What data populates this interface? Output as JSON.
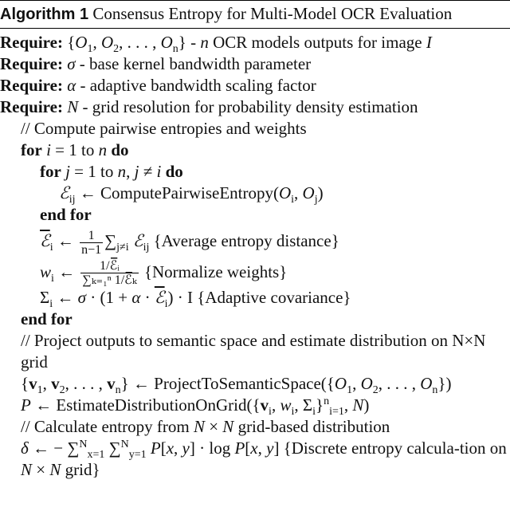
{
  "algorithm": {
    "label": "Algorithm 1",
    "title": "Consensus Entropy for Multi-Model OCR Evaluation",
    "lines": [
      {
        "indent": -1,
        "parts": [
          [
            "b",
            "Require:"
          ],
          [
            "r",
            "  {"
          ],
          [
            "i",
            "O"
          ],
          [
            "sub",
            "1"
          ],
          [
            "r",
            ", "
          ],
          [
            "i",
            "O"
          ],
          [
            "sub",
            "2"
          ],
          [
            "r",
            ", . . . , "
          ],
          [
            "i",
            "O"
          ],
          [
            "sub",
            "n"
          ],
          [
            "r",
            "} - "
          ],
          [
            "i",
            "n"
          ],
          [
            "r",
            " OCR models outputs for image "
          ],
          [
            "i",
            "I"
          ]
        ]
      },
      {
        "indent": -1,
        "parts": [
          [
            "b",
            "Require:"
          ],
          [
            "r",
            "  "
          ],
          [
            "i",
            "σ"
          ],
          [
            "r",
            " - base kernel bandwidth parameter"
          ]
        ]
      },
      {
        "indent": -1,
        "parts": [
          [
            "b",
            "Require:"
          ],
          [
            "r",
            "  "
          ],
          [
            "i",
            "α"
          ],
          [
            "r",
            " - adaptive bandwidth scaling factor"
          ]
        ]
      },
      {
        "indent": -1,
        "parts": [
          [
            "b",
            "Require:"
          ],
          [
            "r",
            "  "
          ],
          [
            "i",
            "N"
          ],
          [
            "r",
            " - grid resolution for probability density estimation"
          ]
        ]
      },
      {
        "indent": 0,
        "parts": [
          [
            "r",
            "// Compute pairwise entropies and weights"
          ]
        ]
      },
      {
        "indent": 0,
        "parts": [
          [
            "b",
            "for"
          ],
          [
            "r",
            " "
          ],
          [
            "i",
            "i"
          ],
          [
            "r",
            " = 1 to "
          ],
          [
            "i",
            "n"
          ],
          [
            "r",
            " "
          ],
          [
            "b",
            "do"
          ]
        ]
      },
      {
        "indent": 1,
        "parts": [
          [
            "b",
            "for"
          ],
          [
            "r",
            " "
          ],
          [
            "i",
            "j"
          ],
          [
            "r",
            " = 1 to "
          ],
          [
            "i",
            "n"
          ],
          [
            "r",
            ", "
          ],
          [
            "i",
            "j"
          ],
          [
            "r",
            " ≠ "
          ],
          [
            "i",
            "i"
          ],
          [
            "r",
            " "
          ],
          [
            "b",
            "do"
          ]
        ]
      },
      {
        "indent": 2,
        "parts": [
          [
            "i",
            "ℰ"
          ],
          [
            "sub",
            "ij"
          ],
          [
            "r",
            " ← ComputePairwiseEntropy("
          ],
          [
            "i",
            "O"
          ],
          [
            "sub",
            "i"
          ],
          [
            "r",
            ", "
          ],
          [
            "i",
            "O"
          ],
          [
            "sub",
            "j"
          ],
          [
            "r",
            ")"
          ]
        ]
      },
      {
        "indent": 1,
        "parts": [
          [
            "b",
            "end for"
          ]
        ]
      },
      {
        "indent": 1,
        "tall": true,
        "parts": [
          [
            "ol",
            "ℰ"
          ],
          [
            "sub",
            "i"
          ],
          [
            "r",
            " ← "
          ],
          [
            "frac",
            "1",
            "n−1"
          ],
          [
            "r",
            "∑"
          ],
          [
            "sub",
            "j≠i"
          ],
          [
            "r",
            " "
          ],
          [
            "i",
            "ℰ"
          ],
          [
            "sub",
            "ij"
          ],
          [
            "r",
            " {Average entropy distance}"
          ]
        ]
      },
      {
        "indent": 1,
        "tall": true,
        "parts": [
          [
            "i",
            "w"
          ],
          [
            "sub",
            "i"
          ],
          [
            "r",
            " ← "
          ],
          [
            "frac",
            "1/ℰ̅ᵢ",
            "∑ₖ₌₁ⁿ 1/ℰ̅ₖ"
          ],
          [
            "r",
            " {Normalize weights}"
          ]
        ]
      },
      {
        "indent": 1,
        "parts": [
          [
            "r",
            "Σ"
          ],
          [
            "sub",
            "i"
          ],
          [
            "r",
            " ← "
          ],
          [
            "i",
            "σ"
          ],
          [
            "r",
            " · (1 + "
          ],
          [
            "i",
            "α"
          ],
          [
            "r",
            " · "
          ],
          [
            "ol",
            "ℰ"
          ],
          [
            "sub",
            "i"
          ],
          [
            "r",
            ") · I {Adaptive covariance}"
          ]
        ]
      },
      {
        "indent": 0,
        "parts": [
          [
            "b",
            "end for"
          ]
        ]
      },
      {
        "indent": 0,
        "wrap": true,
        "parts": [
          [
            "r",
            "// Project outputs to semantic space and estimate distribution on N×N grid"
          ]
        ]
      },
      {
        "indent": 0,
        "parts": [
          [
            "r",
            "{"
          ],
          [
            "bv",
            "v"
          ],
          [
            "sub",
            "1"
          ],
          [
            "r",
            ", "
          ],
          [
            "bv",
            "v"
          ],
          [
            "sub",
            "2"
          ],
          [
            "r",
            ", . . . , "
          ],
          [
            "bv",
            "v"
          ],
          [
            "sub",
            "n"
          ],
          [
            "r",
            "} ← ProjectToSemanticSpace({"
          ],
          [
            "i",
            "O"
          ],
          [
            "sub",
            "1"
          ],
          [
            "r",
            ", "
          ],
          [
            "i",
            "O"
          ],
          [
            "sub",
            "2"
          ],
          [
            "r",
            ", . . . , "
          ],
          [
            "i",
            "O"
          ],
          [
            "sub",
            "n"
          ],
          [
            "r",
            "})"
          ]
        ]
      },
      {
        "indent": 0,
        "parts": [
          [
            "i",
            "P"
          ],
          [
            "r",
            " ← EstimateDistributionOnGrid({"
          ],
          [
            "bv",
            "v"
          ],
          [
            "sub",
            "i"
          ],
          [
            "r",
            ", "
          ],
          [
            "i",
            "w"
          ],
          [
            "sub",
            "i"
          ],
          [
            "r",
            ", Σ"
          ],
          [
            "sub",
            "i"
          ],
          [
            "r",
            "}"
          ],
          [
            "sup",
            "n"
          ],
          [
            "sub",
            "i=1"
          ],
          [
            "r",
            ", "
          ],
          [
            "i",
            "N"
          ],
          [
            "r",
            ")"
          ]
        ]
      },
      {
        "indent": 0,
        "parts": [
          [
            "r",
            "// Calculate entropy from "
          ],
          [
            "i",
            "N"
          ],
          [
            "r",
            " × "
          ],
          [
            "i",
            "N"
          ],
          [
            "r",
            " grid-based distribution"
          ]
        ]
      },
      {
        "indent": 0,
        "wrap": true,
        "parts": [
          [
            "i",
            "δ"
          ],
          [
            "r",
            " ← − ∑"
          ],
          [
            "sup",
            "N"
          ],
          [
            "sub",
            "x=1"
          ],
          [
            "r",
            " ∑"
          ],
          [
            "sup",
            "N"
          ],
          [
            "sub",
            "y=1"
          ],
          [
            "r",
            " "
          ],
          [
            "i",
            "P"
          ],
          [
            "r",
            "["
          ],
          [
            "i",
            "x"
          ],
          [
            "r",
            ", "
          ],
          [
            "i",
            "y"
          ],
          [
            "r",
            "] · log "
          ],
          [
            "i",
            "P"
          ],
          [
            "r",
            "["
          ],
          [
            "i",
            "x"
          ],
          [
            "r",
            ", "
          ],
          [
            "i",
            "y"
          ],
          [
            "r",
            "] {Discrete entropy calcula-tion on "
          ],
          [
            "i",
            "N"
          ],
          [
            "r",
            " × "
          ],
          [
            "i",
            "N"
          ],
          [
            "r",
            " grid}"
          ]
        ]
      }
    ]
  }
}
